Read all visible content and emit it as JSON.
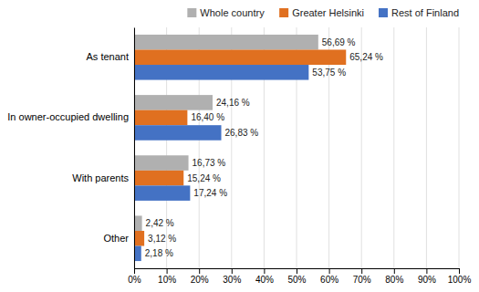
{
  "chart_data": {
    "type": "bar",
    "orientation": "horizontal",
    "categories": [
      "As tenant",
      "In owner-occupied dwelling",
      "With parents",
      "Other"
    ],
    "series": [
      {
        "name": "Whole country",
        "color": "#b0b0b0",
        "values": [
          56.69,
          24.16,
          16.73,
          2.42
        ],
        "value_labels": [
          "56,69 %",
          "24,16 %",
          "16,73 %",
          "2,42 %"
        ]
      },
      {
        "name": "Greater Helsinki",
        "color": "#e07020",
        "values": [
          65.24,
          16.4,
          15.24,
          3.12
        ],
        "value_labels": [
          "65,24 %",
          "16,40 %",
          "15,24 %",
          "3,12 %"
        ]
      },
      {
        "name": "Rest of Finland",
        "color": "#4472c4",
        "values": [
          53.75,
          26.83,
          17.24,
          2.18
        ],
        "value_labels": [
          "53,75 %",
          "26,83 %",
          "17,24 %",
          "2,18 %"
        ]
      }
    ],
    "xlim": [
      0,
      100
    ],
    "xticks": [
      {
        "value": 0,
        "label": "0%"
      },
      {
        "value": 10,
        "label": "10%"
      },
      {
        "value": 20,
        "label": "20%"
      },
      {
        "value": 30,
        "label": "30%"
      },
      {
        "value": 40,
        "label": "40%"
      },
      {
        "value": 50,
        "label": "50%"
      },
      {
        "value": 60,
        "label": "60%"
      },
      {
        "value": 70,
        "label": "70%"
      },
      {
        "value": 80,
        "label": "80%"
      },
      {
        "value": 90,
        "label": "90%"
      },
      {
        "value": 100,
        "label": "100%"
      }
    ],
    "grid": true,
    "legend": "upper right",
    "data_labels": true
  }
}
